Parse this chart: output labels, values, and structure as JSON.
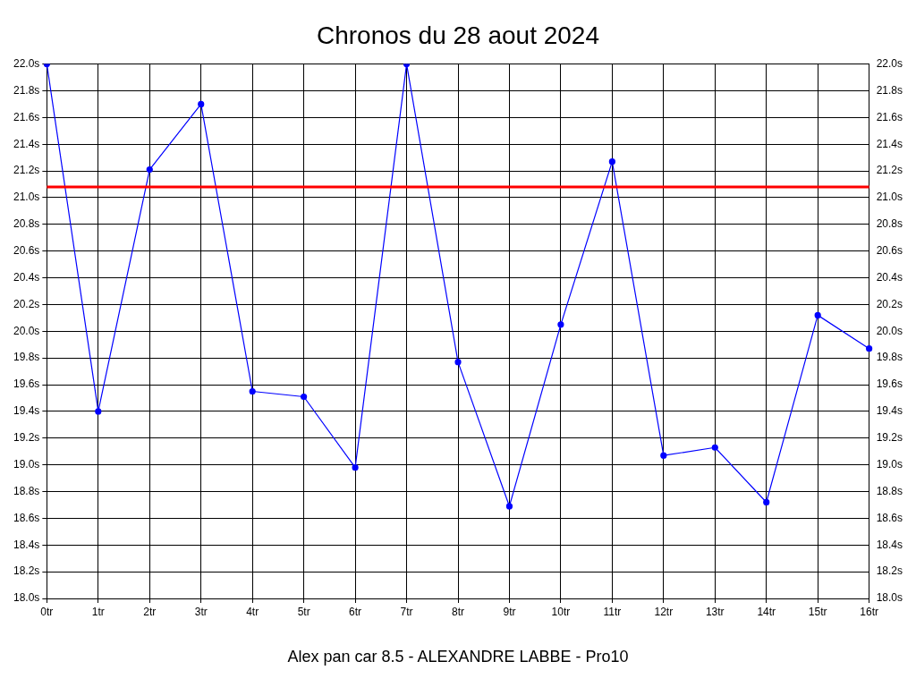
{
  "chart_data": {
    "type": "line",
    "title": "Chronos du 28 aout 2024",
    "xlabel": "Alex pan car 8.5 - ALEXANDRE LABBE - Pro10",
    "categories": [
      "0tr",
      "1tr",
      "2tr",
      "3tr",
      "4tr",
      "5tr",
      "6tr",
      "7tr",
      "8tr",
      "9tr",
      "10tr",
      "11tr",
      "12tr",
      "13tr",
      "14tr",
      "15tr",
      "16tr"
    ],
    "series": [
      {
        "color": "#0000ff",
        "values": [
          22.0,
          19.4,
          21.21,
          21.7,
          19.55,
          19.51,
          18.98,
          22.0,
          19.77,
          18.69,
          20.05,
          21.27,
          19.07,
          19.13,
          18.72,
          20.12,
          19.87
        ]
      }
    ],
    "ylim": [
      18.0,
      22.0
    ],
    "yticks": [
      {
        "value": 18.0,
        "label": "18.0s"
      },
      {
        "value": 18.2,
        "label": "18.2s"
      },
      {
        "value": 18.4,
        "label": "18.4s"
      },
      {
        "value": 18.6,
        "label": "18.6s"
      },
      {
        "value": 18.8,
        "label": "18.8s"
      },
      {
        "value": 19.0,
        "label": "19.0s"
      },
      {
        "value": 19.2,
        "label": "19.2s"
      },
      {
        "value": 19.4,
        "label": "19.4s"
      },
      {
        "value": 19.6,
        "label": "19.6s"
      },
      {
        "value": 19.8,
        "label": "19.8s"
      },
      {
        "value": 20.0,
        "label": "20.0s"
      },
      {
        "value": 20.2,
        "label": "20.2s"
      },
      {
        "value": 20.4,
        "label": "20.4s"
      },
      {
        "value": 20.6,
        "label": "20.6s"
      },
      {
        "value": 20.8,
        "label": "20.8s"
      },
      {
        "value": 21.0,
        "label": "21.0s"
      },
      {
        "value": 21.2,
        "label": "21.2s"
      },
      {
        "value": 21.4,
        "label": "21.4s"
      },
      {
        "value": 21.6,
        "label": "21.6s"
      },
      {
        "value": 21.8,
        "label": "21.8s"
      },
      {
        "value": 22.0,
        "label": "22.0s"
      }
    ],
    "y2lim": [
      18.0,
      22.0
    ],
    "y2ticks": [
      {
        "value": 18.0,
        "label": "18.0s"
      },
      {
        "value": 18.2,
        "label": "18.2s"
      },
      {
        "value": 18.4,
        "label": "18.4s"
      },
      {
        "value": 18.6,
        "label": "18.6s"
      },
      {
        "value": 18.8,
        "label": "18.8s"
      },
      {
        "value": 19.0,
        "label": "19.0s"
      },
      {
        "value": 19.2,
        "label": "19.2s"
      },
      {
        "value": 19.4,
        "label": "19.4s"
      },
      {
        "value": 19.6,
        "label": "19.6s"
      },
      {
        "value": 19.8,
        "label": "19.8s"
      },
      {
        "value": 20.0,
        "label": "20.0s"
      },
      {
        "value": 20.2,
        "label": "20.2s"
      },
      {
        "value": 20.4,
        "label": "20.4s"
      },
      {
        "value": 20.6,
        "label": "20.6s"
      },
      {
        "value": 20.8,
        "label": "20.8s"
      },
      {
        "value": 21.0,
        "label": "21.0s"
      },
      {
        "value": 21.2,
        "label": "21.2s"
      },
      {
        "value": 21.4,
        "label": "21.4s"
      },
      {
        "value": 21.6,
        "label": "21.6s"
      },
      {
        "value": 21.8,
        "label": "21.8s"
      },
      {
        "value": 22.0,
        "label": "22.0s"
      }
    ],
    "ref_lines": [
      {
        "axis": "y",
        "value": 21.08,
        "color": "#ff0000"
      }
    ],
    "grid": true,
    "legend": false,
    "marker": "circle",
    "line_style": "solid"
  }
}
